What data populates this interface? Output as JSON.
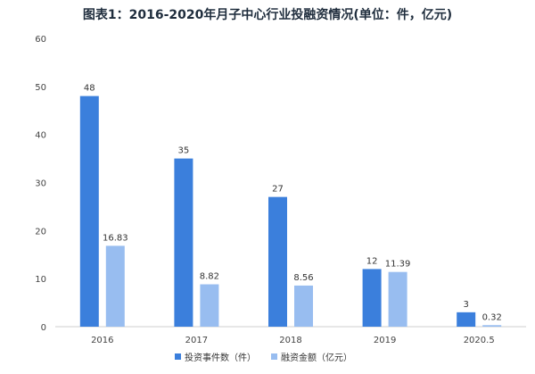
{
  "chart_data": {
    "type": "bar",
    "title": "图表1：2016-2020年月子中心行业投融资情况(单位：件，亿元)",
    "categories": [
      "2016",
      "2017",
      "2018",
      "2019",
      "2020.5"
    ],
    "series": [
      {
        "name": "投资事件数（件）",
        "values": [
          48,
          35,
          27,
          12,
          3
        ],
        "labels": [
          "48",
          "35",
          "27",
          "12",
          "3"
        ],
        "color": "#3b7fdc"
      },
      {
        "name": "融资金额（亿元）",
        "values": [
          16.83,
          8.82,
          8.56,
          11.39,
          0.32
        ],
        "labels": [
          "16.83",
          "8.82",
          "8.56",
          "11.39",
          "0.32"
        ],
        "color": "#98bdf0"
      }
    ],
    "ylim": [
      0,
      60
    ],
    "yticks": [
      "0",
      "10",
      "20",
      "30",
      "40",
      "50",
      "60"
    ],
    "grid": false,
    "legend_position": "bottom"
  }
}
